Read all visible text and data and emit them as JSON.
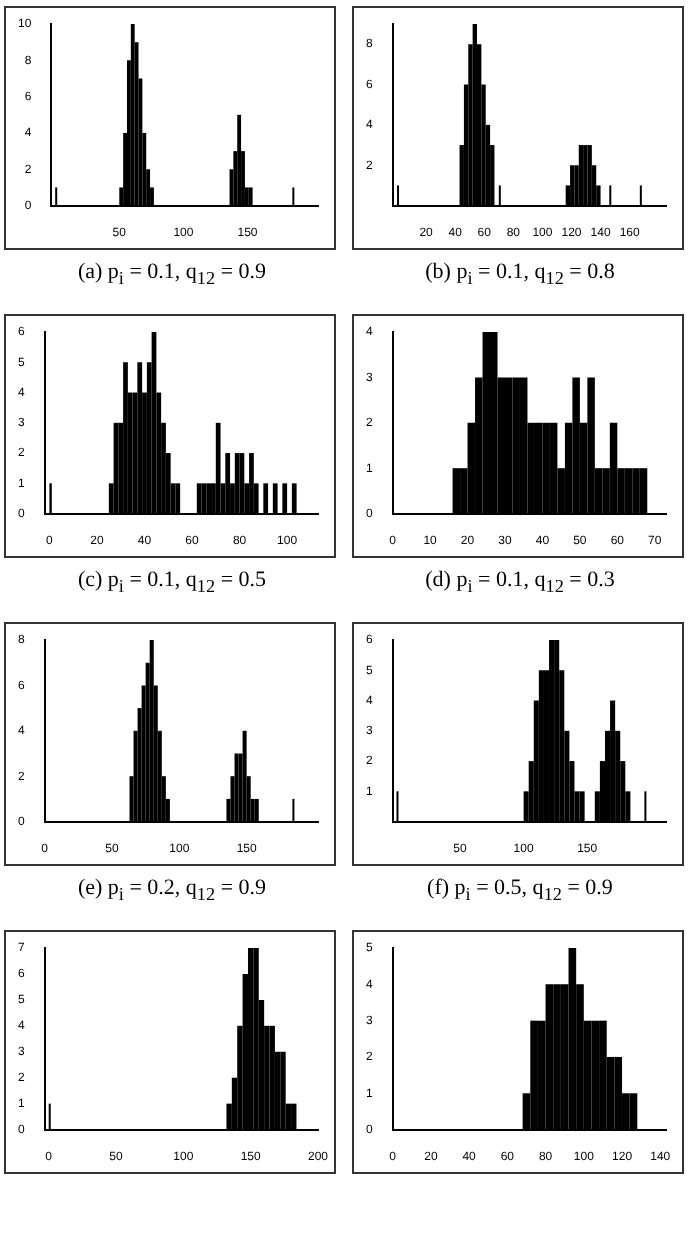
{
  "chart_data": [
    {
      "type": "histogram",
      "title": "(a) p$_{i}$ = 0.1, q$_{12}$ = 0.9",
      "color": "#000000",
      "xlim": [
        -3,
        205
      ],
      "xticks": [
        50,
        100,
        150
      ],
      "ylim": [
        0,
        10
      ],
      "yticks": [
        0,
        2,
        4,
        6,
        8,
        10
      ],
      "bins": [
        0,
        1,
        50,
        53,
        56,
        59,
        62,
        65,
        68,
        71,
        74,
        77,
        136,
        139,
        142,
        145,
        148,
        151,
        154,
        185,
        186
      ],
      "values": [
        1,
        0,
        1,
        4,
        8,
        10,
        9,
        7,
        4,
        2,
        1,
        0,
        2,
        3,
        5,
        3,
        1,
        1,
        0,
        1
      ]
    },
    {
      "type": "histogram",
      "title": "(b) p$_{i}$ = 0.1, q$_{12}$ = 0.8",
      "color": "#000000",
      "xlim": [
        -3,
        185
      ],
      "xticks": [
        20,
        40,
        60,
        80,
        100,
        120,
        140,
        160
      ],
      "ylim": [
        0,
        9
      ],
      "yticks": [
        2,
        4,
        6,
        8
      ],
      "bins": [
        0,
        1,
        43,
        46,
        49,
        52,
        55,
        58,
        61,
        64,
        67,
        70,
        71,
        116,
        119,
        122,
        125,
        128,
        131,
        134,
        137,
        140,
        146,
        147,
        167,
        168
      ],
      "values": [
        1,
        0,
        3,
        6,
        8,
        9,
        8,
        6,
        4,
        3,
        0,
        1,
        0,
        1,
        2,
        2,
        3,
        3,
        3,
        2,
        1,
        0,
        1,
        0,
        1
      ]
    },
    {
      "type": "histogram",
      "title": "(c) p$_{i}$ = 0.1, q$_{12}$ = 0.5",
      "color": "#000000",
      "xlim": [
        -2,
        113
      ],
      "xticks": [
        0,
        20,
        40,
        60,
        80,
        100
      ],
      "ylim": [
        0,
        6
      ],
      "yticks": [
        0,
        1,
        2,
        3,
        4,
        5,
        6
      ],
      "bins": [
        0,
        1,
        25,
        27,
        29,
        31,
        33,
        35,
        37,
        39,
        41,
        43,
        45,
        47,
        49,
        51,
        53,
        55,
        62,
        64,
        66,
        68,
        70,
        72,
        74,
        76,
        78,
        80,
        82,
        84,
        86,
        88,
        90,
        92,
        94,
        96,
        98,
        100,
        102,
        104
      ],
      "values": [
        1,
        0,
        1,
        3,
        3,
        5,
        4,
        4,
        5,
        4,
        5,
        6,
        4,
        3,
        2,
        1,
        1,
        0,
        1,
        1,
        1,
        1,
        3,
        1,
        2,
        1,
        2,
        2,
        1,
        2,
        1,
        0,
        1,
        0,
        1,
        0,
        1,
        0,
        1
      ]
    },
    {
      "type": "histogram",
      "title": "(d) p$_{i}$ = 0.1, q$_{12}$ = 0.3",
      "color": "#000000",
      "xlim": [
        0,
        73
      ],
      "xticks": [
        0,
        10,
        20,
        30,
        40,
        50,
        60,
        70
      ],
      "ylim": [
        0,
        4
      ],
      "yticks": [
        0,
        1,
        2,
        3,
        4
      ],
      "bins": [
        16,
        18,
        20,
        22,
        24,
        26,
        28,
        30,
        32,
        34,
        36,
        38,
        40,
        42,
        44,
        46,
        48,
        50,
        52,
        54,
        56,
        58,
        60,
        62,
        64,
        66,
        68
      ],
      "values": [
        1,
        1,
        2,
        3,
        4,
        4,
        3,
        3,
        3,
        3,
        2,
        2,
        2,
        2,
        1,
        2,
        3,
        2,
        3,
        1,
        1,
        2,
        1,
        1,
        1,
        1
      ]
    },
    {
      "type": "histogram",
      "title": "(e) p$_{i}$ = 0.2, q$_{12}$ = 0.9",
      "color": "#000000",
      "xlim": [
        0,
        203
      ],
      "xticks": [
        0,
        50,
        100,
        150
      ],
      "ylim": [
        0,
        8
      ],
      "yticks": [
        0,
        2,
        4,
        6,
        8
      ],
      "bins": [
        63,
        66,
        69,
        72,
        75,
        78,
        81,
        84,
        87,
        90,
        93,
        135,
        138,
        141,
        144,
        147,
        150,
        153,
        156,
        159,
        184,
        185
      ],
      "values": [
        2,
        4,
        5,
        6,
        7,
        8,
        6,
        4,
        2,
        1,
        0,
        1,
        2,
        3,
        3,
        4,
        2,
        1,
        1,
        0,
        1
      ]
    },
    {
      "type": "histogram",
      "title": "(f) p$_{i}$ = 0.5, q$_{12}$ = 0.9",
      "color": "#000000",
      "xlim": [
        -3,
        212
      ],
      "xticks": [
        50,
        100,
        150
      ],
      "ylim": [
        0,
        6
      ],
      "yticks": [
        1,
        2,
        3,
        4,
        5,
        6
      ],
      "bins": [
        0,
        1,
        100,
        104,
        108,
        112,
        116,
        120,
        124,
        128,
        132,
        136,
        140,
        144,
        148,
        156,
        160,
        164,
        168,
        172,
        176,
        180,
        184,
        195,
        196
      ],
      "values": [
        1,
        0,
        1,
        2,
        4,
        5,
        5,
        6,
        6,
        5,
        3,
        2,
        1,
        1,
        0,
        1,
        2,
        3,
        4,
        3,
        2,
        1,
        0,
        1
      ]
    },
    {
      "type": "histogram",
      "color": "#000000",
      "xlim": [
        -3,
        200
      ],
      "xticks": [
        0,
        50,
        100,
        150,
        200
      ],
      "ylim": [
        0,
        7
      ],
      "yticks": [
        0,
        1,
        2,
        3,
        4,
        5,
        6,
        7
      ],
      "bins": [
        0,
        1,
        132,
        136,
        140,
        144,
        148,
        152,
        156,
        160,
        164,
        168,
        172,
        176,
        180,
        184
      ],
      "values": [
        1,
        0,
        1,
        2,
        4,
        6,
        7,
        7,
        5,
        4,
        4,
        3,
        3,
        1,
        1
      ]
    },
    {
      "type": "histogram",
      "color": "#000000",
      "xlim": [
        0,
        143
      ],
      "xticks": [
        0,
        20,
        40,
        60,
        80,
        100,
        120,
        140
      ],
      "ylim": [
        0,
        5
      ],
      "yticks": [
        0,
        1,
        2,
        3,
        4,
        5
      ],
      "bins": [
        68,
        72,
        76,
        80,
        84,
        88,
        92,
        96,
        100,
        104,
        108,
        112,
        116,
        120,
        124,
        128
      ],
      "values": [
        1,
        3,
        3,
        4,
        4,
        4,
        5,
        4,
        3,
        3,
        3,
        2,
        2,
        1,
        1
      ]
    }
  ]
}
